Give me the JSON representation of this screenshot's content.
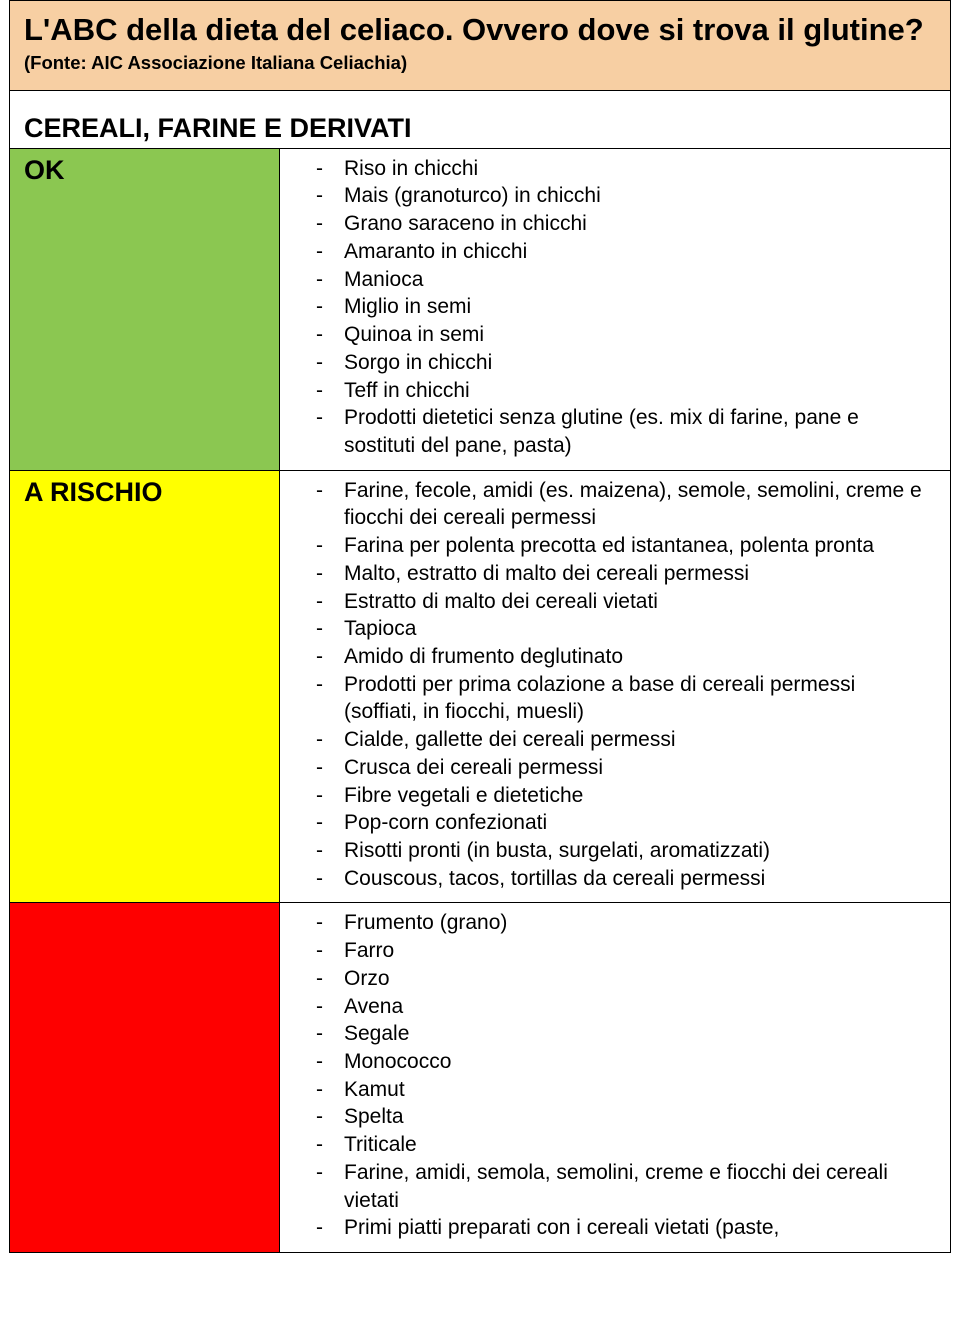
{
  "header": {
    "title": "L'ABC della dieta del celiaco. Ovvero dove si trova il glutine?",
    "source": "(Fonte: AIC Associazione Italiana Celiachia)",
    "background_color": "#f7cfa3"
  },
  "section_title": "CEREALI, FARINE E DERIVATI",
  "rows": [
    {
      "label": "OK",
      "background_color": "#8bc751",
      "items": [
        "Riso in chicchi",
        "Mais (granoturco) in chicchi",
        "Grano saraceno in chicchi",
        "Amaranto in chicchi",
        "Manioca",
        "Miglio in semi",
        "Quinoa in semi",
        "Sorgo in chicchi",
        "Teff in chicchi",
        "Prodotti dietetici senza glutine (es. mix di farine, pane e sostituti del pane, pasta)"
      ]
    },
    {
      "label": "A RISCHIO",
      "background_color": "#ffff00",
      "items": [
        "Farine, fecole, amidi (es. maizena), semole, semolini, creme e fiocchi dei cereali permessi",
        "Farina per polenta precotta ed istantanea, polenta pronta",
        "Malto, estratto di malto dei cereali permessi",
        "Estratto di malto dei cereali vietati",
        "Tapioca",
        "Amido di frumento deglutinato",
        "Prodotti per prima colazione a base di cereali permessi (soffiati, in fiocchi, muesli)",
        "Cialde, gallette dei cereali permessi",
        "Crusca dei cereali permessi",
        "Fibre vegetali e dietetiche",
        "Pop-corn confezionati",
        "Risotti pronti (in busta, surgelati, aromatizzati)",
        "Couscous, tacos, tortillas da cereali permessi"
      ]
    },
    {
      "label": "",
      "background_color": "#fe0000",
      "items": [
        "Frumento (grano)",
        "Farro",
        "Orzo",
        "Avena",
        "Segale",
        "Monococco",
        "Kamut",
        "Spelta",
        "Triticale",
        "Farine, amidi, semola, semolini, creme e fiocchi dei cereali vietati",
        "Primi piatti preparati con i cereali vietati (paste,"
      ]
    }
  ]
}
